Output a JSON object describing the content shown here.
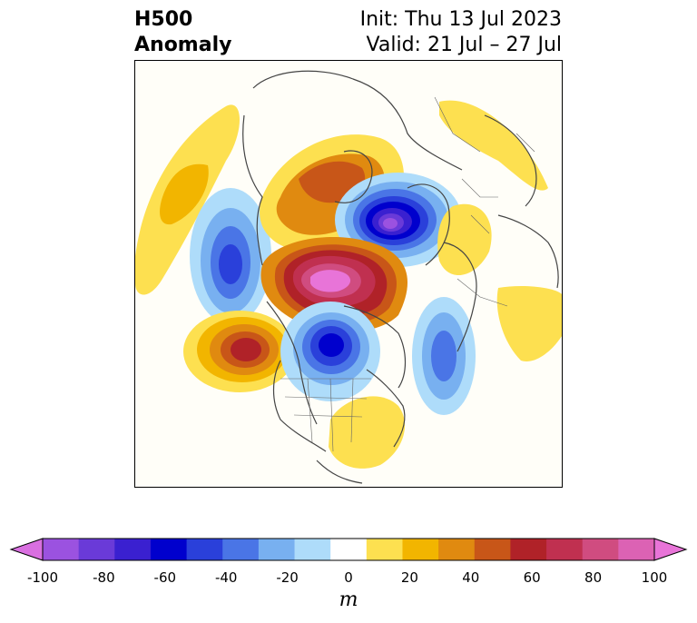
{
  "title": {
    "left_line1": "H500",
    "left_line2": "Anomaly",
    "right_line1": "Init: Thu 13 Jul 2023",
    "right_line2": "Valid: 21 Jul – 27 Jul"
  },
  "colorbar": {
    "units": "m",
    "ticks": [
      "-100",
      "-80",
      "-60",
      "-40",
      "-20",
      "0",
      "20",
      "40",
      "60",
      "80",
      "100"
    ],
    "tick_values": [
      -100,
      -80,
      -60,
      -40,
      -20,
      0,
      20,
      40,
      60,
      80,
      100
    ],
    "colors": [
      "#d96fe0",
      "#9b52e0",
      "#6a3ad8",
      "#3a20d0",
      "#0000cd",
      "#2a40da",
      "#4a75e6",
      "#78b0f0",
      "#aedcfa",
      "#ffffff",
      "#fde050",
      "#f2b500",
      "#e08a10",
      "#c85618",
      "#b02228",
      "#c03050",
      "#d04c80",
      "#dc62b4",
      "#e874d8"
    ],
    "extend": "both"
  },
  "map": {
    "projection": "north-polar-stereographic",
    "field": "500 hPa geopotential height anomaly",
    "features": [
      {
        "name": "Central Arctic / Beaufort Sea",
        "sign": "positive",
        "approx_max_m": 100
      },
      {
        "name": "Northern Canada / Hudson Bay",
        "sign": "positive",
        "approx_max_m": 70
      },
      {
        "name": "Northern Siberia",
        "sign": "positive",
        "approx_max_m": 50
      },
      {
        "name": "North Pacific (east)",
        "sign": "positive",
        "approx_max_m": 60
      },
      {
        "name": "Barents / Kara Sea",
        "sign": "negative",
        "approx_min_m": -90
      },
      {
        "name": "Gulf of Alaska / Western Canada",
        "sign": "negative",
        "approx_min_m": -60
      },
      {
        "name": "North Pacific (central)",
        "sign": "negative",
        "approx_min_m": -40
      },
      {
        "name": "North Atlantic",
        "sign": "negative",
        "approx_min_m": -40
      },
      {
        "name": "Eastern North America",
        "sign": "positive",
        "approx_max_m": 20
      },
      {
        "name": "Europe",
        "sign": "positive",
        "approx_max_m": 20
      }
    ]
  }
}
